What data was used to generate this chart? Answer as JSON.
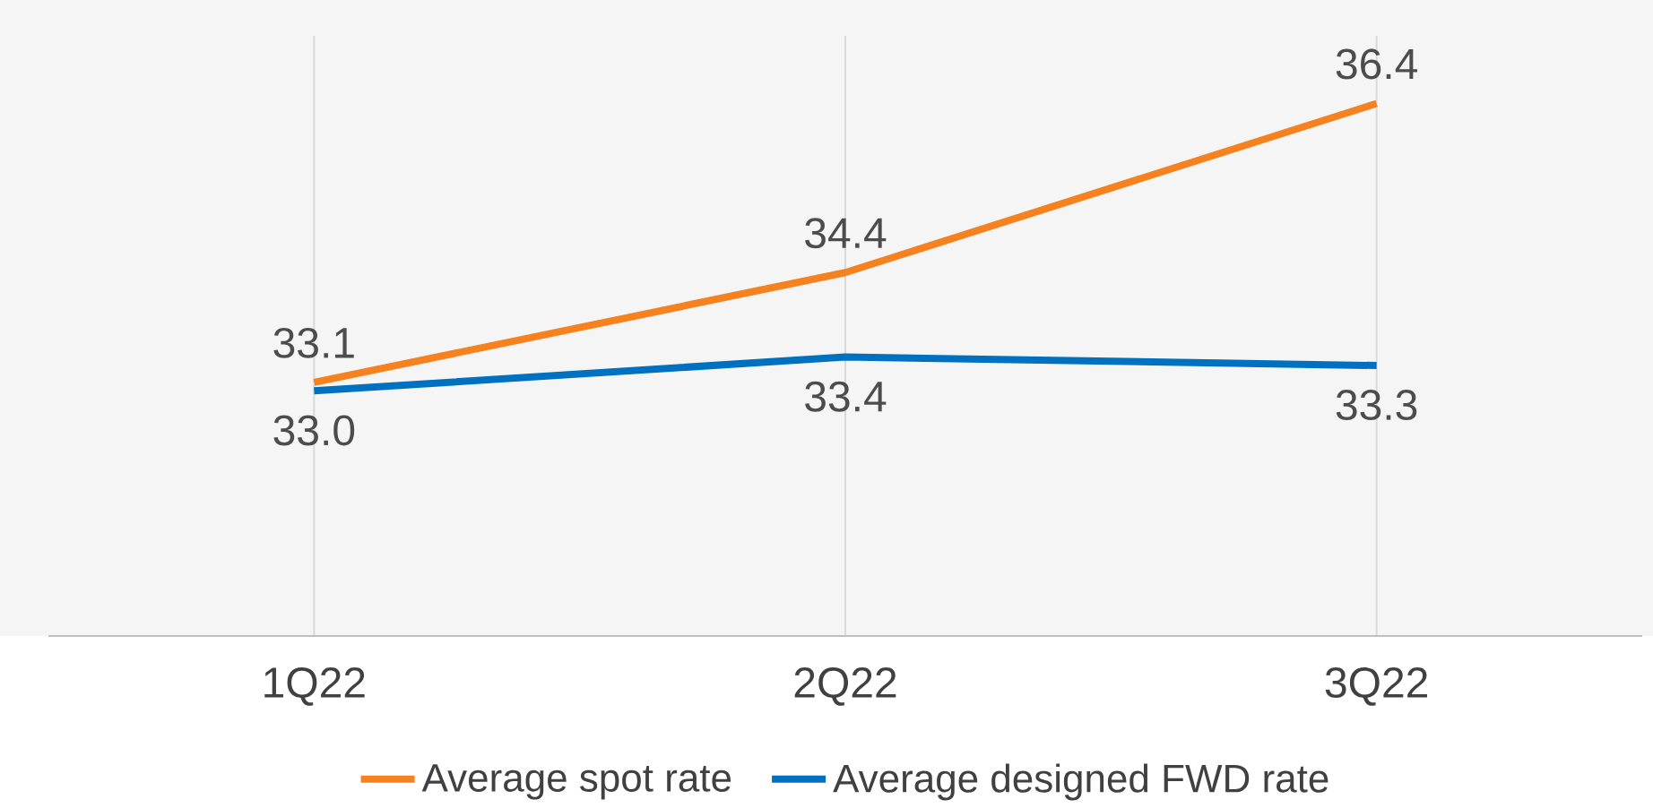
{
  "chart_data": {
    "type": "line",
    "categories": [
      "1Q22",
      "2Q22",
      "3Q22"
    ],
    "series": [
      {
        "name": "Average spot rate",
        "color": "#f5821f",
        "values": [
          33.1,
          34.4,
          36.4
        ],
        "value_labels": [
          "33.1",
          "34.4",
          "36.4"
        ]
      },
      {
        "name": "Average designed FWD rate",
        "color": "#0070c0",
        "values": [
          33.0,
          33.4,
          33.3
        ],
        "value_labels": [
          "33.0",
          "33.4",
          "33.3"
        ]
      }
    ],
    "ylim": [
      30.1,
      37.2
    ],
    "grid": "x",
    "legend": "bottom",
    "tick_labels": "x",
    "marker": "none",
    "line_style": "solid"
  }
}
